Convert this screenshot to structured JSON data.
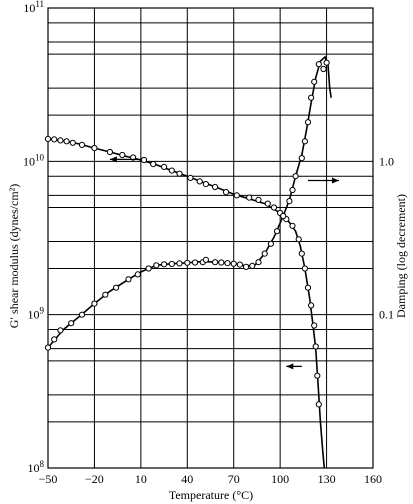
{
  "chart_data": {
    "type": "scatter",
    "title": "",
    "xlabel": "Temperature (°C)",
    "ylabel_left": "G′ shear modulus (dynes/cm²)",
    "ylabel_right": "Damping (log decrement)",
    "xlim": [
      -50,
      160
    ],
    "x_ticks": [
      -50,
      -20,
      10,
      40,
      70,
      100,
      130,
      160
    ],
    "x_tick_labels": [
      "−50",
      "−20",
      "10",
      "40",
      "70",
      "100",
      "130",
      "160"
    ],
    "ylim_left": [
      100000000,
      100000000000
    ],
    "y_scale_left": "log",
    "y_ticks_left": [
      {
        "value": 100000000,
        "base": "10",
        "exp": "8"
      },
      {
        "value": 1000000000,
        "base": "10",
        "exp": "9"
      },
      {
        "value": 10000000000,
        "base": "10",
        "exp": "10"
      },
      {
        "value": 100000000000,
        "base": "10",
        "exp": "11"
      }
    ],
    "ylim_right": [
      0.01,
      10
    ],
    "y_scale_right": "log",
    "y_ticks_right": [
      {
        "value": 0.1,
        "label": "0.1"
      },
      {
        "value": 1.0,
        "label": "1.0"
      }
    ],
    "grid": true,
    "series": [
      {
        "axis": "left",
        "color": "#000000",
        "arrow_direction": "left",
        "points": [
          [
            -50,
            14000000000
          ],
          [
            -46,
            13900000000
          ],
          [
            -42,
            13700000000
          ],
          [
            -38,
            13500000000
          ],
          [
            -34,
            13200000000
          ],
          [
            -28,
            12800000000
          ],
          [
            -20,
            12200000000
          ],
          [
            -10,
            11500000000
          ],
          [
            -2,
            11000000000
          ],
          [
            5,
            10600000000
          ],
          [
            12,
            10200000000
          ],
          [
            18,
            9600000000
          ],
          [
            25,
            9200000000
          ],
          [
            30,
            8700000000
          ],
          [
            35,
            8300000000
          ],
          [
            42,
            7800000000
          ],
          [
            48,
            7400000000
          ],
          [
            52,
            7100000000
          ],
          [
            58,
            6800000000
          ],
          [
            65,
            6300000000
          ],
          [
            72,
            6000000000
          ],
          [
            80,
            5800000000
          ],
          [
            86,
            5600000000
          ],
          [
            92,
            5300000000
          ],
          [
            96,
            5000000000
          ],
          [
            100,
            4600000000
          ],
          [
            104,
            4200000000
          ],
          [
            108,
            3800000000
          ],
          [
            112,
            3100000000
          ],
          [
            114,
            2500000000
          ],
          [
            116,
            2000000000
          ],
          [
            118,
            1500000000
          ],
          [
            120,
            1150000000
          ],
          [
            122,
            850000000
          ],
          [
            123,
            620000000
          ],
          [
            124,
            400000000
          ],
          [
            125,
            260000000
          ]
        ],
        "curve": [
          [
            -50,
            14000000000
          ],
          [
            -40,
            13600000000
          ],
          [
            -30,
            13000000000
          ],
          [
            -20,
            12200000000
          ],
          [
            -10,
            11500000000
          ],
          [
            0,
            10800000000
          ],
          [
            10,
            10200000000
          ],
          [
            20,
            9500000000
          ],
          [
            30,
            8700000000
          ],
          [
            40,
            8000000000
          ],
          [
            50,
            7300000000
          ],
          [
            60,
            6700000000
          ],
          [
            70,
            6100000000
          ],
          [
            80,
            5700000000
          ],
          [
            90,
            5300000000
          ],
          [
            100,
            4600000000
          ],
          [
            106,
            4000000000
          ],
          [
            110,
            3500000000
          ],
          [
            113,
            2800000000
          ],
          [
            116,
            2000000000
          ],
          [
            119,
            1300000000
          ],
          [
            121,
            900000000
          ],
          [
            123,
            600000000
          ],
          [
            124.5,
            350000000
          ],
          [
            126,
            200000000
          ],
          [
            127.5,
            130000000
          ],
          [
            128.5,
            100000000
          ]
        ]
      },
      {
        "axis": "right",
        "color": "#000000",
        "arrow_direction": "right",
        "points": [
          [
            -50,
            0.061
          ],
          [
            -46,
            0.069
          ],
          [
            -42,
            0.079
          ],
          [
            -35,
            0.088
          ],
          [
            -28,
            0.1
          ],
          [
            -20,
            0.118
          ],
          [
            -13,
            0.135
          ],
          [
            -6,
            0.15
          ],
          [
            2,
            0.17
          ],
          [
            8,
            0.183
          ],
          [
            15,
            0.2
          ],
          [
            20,
            0.21
          ],
          [
            25,
            0.213
          ],
          [
            30,
            0.214
          ],
          [
            35,
            0.216
          ],
          [
            40,
            0.218
          ],
          [
            45,
            0.219
          ],
          [
            50,
            0.22
          ],
          [
            52,
            0.228
          ],
          [
            58,
            0.22
          ],
          [
            62,
            0.219
          ],
          [
            66,
            0.217
          ],
          [
            70,
            0.215
          ],
          [
            74,
            0.212
          ],
          [
            78,
            0.205
          ],
          [
            82,
            0.208
          ],
          [
            86,
            0.22
          ],
          [
            90,
            0.25
          ],
          [
            94,
            0.29
          ],
          [
            98,
            0.35
          ],
          [
            102,
            0.44
          ],
          [
            106,
            0.55
          ],
          [
            108,
            0.65
          ],
          [
            110,
            0.8
          ],
          [
            114,
            1.05
          ],
          [
            116,
            1.35
          ],
          [
            118,
            1.8
          ],
          [
            120,
            2.6
          ],
          [
            122,
            3.3
          ],
          [
            125,
            4.3
          ],
          [
            128,
            4.0
          ],
          [
            130,
            4.4
          ]
        ],
        "curve": [
          [
            -50,
            0.061
          ],
          [
            -40,
            0.08
          ],
          [
            -30,
            0.097
          ],
          [
            -20,
            0.118
          ],
          [
            -10,
            0.142
          ],
          [
            0,
            0.165
          ],
          [
            10,
            0.19
          ],
          [
            20,
            0.21
          ],
          [
            30,
            0.215
          ],
          [
            40,
            0.218
          ],
          [
            50,
            0.222
          ],
          [
            60,
            0.22
          ],
          [
            70,
            0.215
          ],
          [
            78,
            0.208
          ],
          [
            84,
            0.212
          ],
          [
            90,
            0.25
          ],
          [
            96,
            0.32
          ],
          [
            102,
            0.44
          ],
          [
            106,
            0.56
          ],
          [
            110,
            0.8
          ],
          [
            114,
            1.1
          ],
          [
            117,
            1.6
          ],
          [
            120,
            2.4
          ],
          [
            123,
            3.5
          ],
          [
            126,
            4.5
          ],
          [
            129,
            4.8
          ],
          [
            131,
            4.2
          ],
          [
            132,
            3.0
          ],
          [
            133,
            2.6
          ]
        ]
      }
    ],
    "annotations": [
      {
        "type": "arrow",
        "direction": "left",
        "axis": "left",
        "x_from": 10,
        "x_to": -10,
        "y": 10300000000
      },
      {
        "type": "arrow",
        "direction": "right",
        "axis": "right",
        "x_from": 118,
        "x_to": 138,
        "y": 0.75
      },
      {
        "type": "arrow",
        "direction": "left",
        "axis": "left",
        "x_from": 114,
        "x_to": 104,
        "y": 460000000
      }
    ]
  }
}
